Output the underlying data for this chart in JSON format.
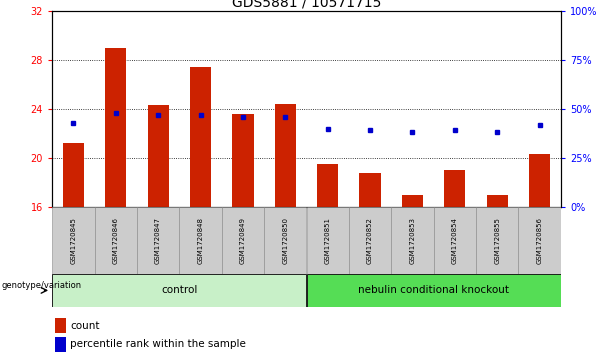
{
  "title": "GDS5881 / 10571715",
  "samples": [
    "GSM1720845",
    "GSM1720846",
    "GSM1720847",
    "GSM1720848",
    "GSM1720849",
    "GSM1720850",
    "GSM1720851",
    "GSM1720852",
    "GSM1720853",
    "GSM1720854",
    "GSM1720855",
    "GSM1720856"
  ],
  "bar_values": [
    21.2,
    29.0,
    24.3,
    27.4,
    23.6,
    24.4,
    19.5,
    18.8,
    17.0,
    19.0,
    17.0,
    20.3
  ],
  "bar_base": 16,
  "dot_percentile": [
    43,
    48,
    47,
    47,
    46,
    46,
    40,
    39,
    38,
    39,
    38,
    42
  ],
  "bar_color": "#cc2200",
  "dot_color": "#0000cc",
  "ylim_left": [
    16,
    32
  ],
  "ylim_right": [
    0,
    100
  ],
  "yticks_left": [
    16,
    20,
    24,
    28,
    32
  ],
  "yticks_right": [
    0,
    25,
    50,
    75,
    100
  ],
  "ytick_labels_right": [
    "0%",
    "25%",
    "50%",
    "75%",
    "100%"
  ],
  "grid_values": [
    20,
    24,
    28
  ],
  "n_control": 6,
  "n_knockout": 6,
  "control_label": "control",
  "knockout_label": "nebulin conditional knockout",
  "group_label": "genotype/variation",
  "legend_count": "count",
  "legend_percentile": "percentile rank within the sample",
  "control_bg": "#c8f0c8",
  "knockout_bg": "#55dd55",
  "sample_bg": "#cccccc",
  "title_fontsize": 10,
  "bar_width": 0.5
}
